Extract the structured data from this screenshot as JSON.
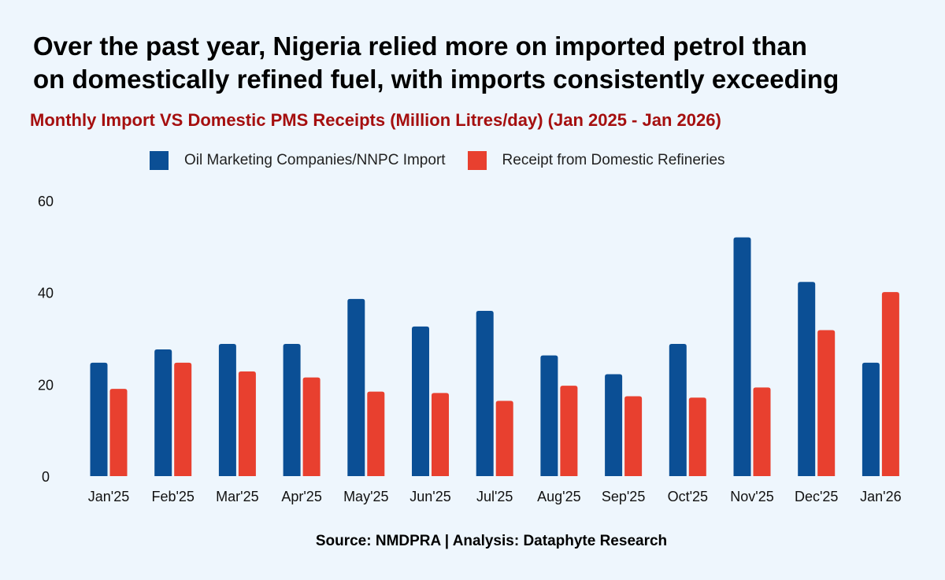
{
  "headline": {
    "line1": "Over the past year, Nigeria relied more on imported petrol than",
    "line2": "on domestically refined fuel, with imports consistently exceeding"
  },
  "source": "Source: NMDPRA | Analysis: Dataphyte Research",
  "chart_data": {
    "type": "bar",
    "title": "Monthly Import VS Domestic PMS Receipts (Million Litres/day) (Jan 2025 - Jan 2026)",
    "xlabel": "",
    "ylabel": "",
    "ylim": [
      0,
      60
    ],
    "yticks": [
      0,
      20,
      40,
      60
    ],
    "grid": false,
    "legend_position": "top",
    "categories": [
      "Jan'25",
      "Feb'25",
      "Mar'25",
      "Apr'25",
      "May'25",
      "Jun'25",
      "Jul'25",
      "Aug'25",
      "Sep'25",
      "Oct'25",
      "Nov'25",
      "Dec'25",
      "Jan'26"
    ],
    "series": [
      {
        "name": "Oil Marketing Companies/NNPC Import",
        "color": "#0b4f95",
        "values": [
          24.7,
          27.6,
          28.8,
          28.8,
          38.6,
          32.6,
          36.0,
          26.3,
          22.2,
          28.8,
          52.0,
          42.3,
          24.7
        ]
      },
      {
        "name": "Receipt from Domestic Refineries",
        "color": "#e8402f",
        "values": [
          19.0,
          24.7,
          22.8,
          21.5,
          18.4,
          18.1,
          16.4,
          19.7,
          17.4,
          17.1,
          19.3,
          31.8,
          40.1
        ]
      }
    ]
  }
}
